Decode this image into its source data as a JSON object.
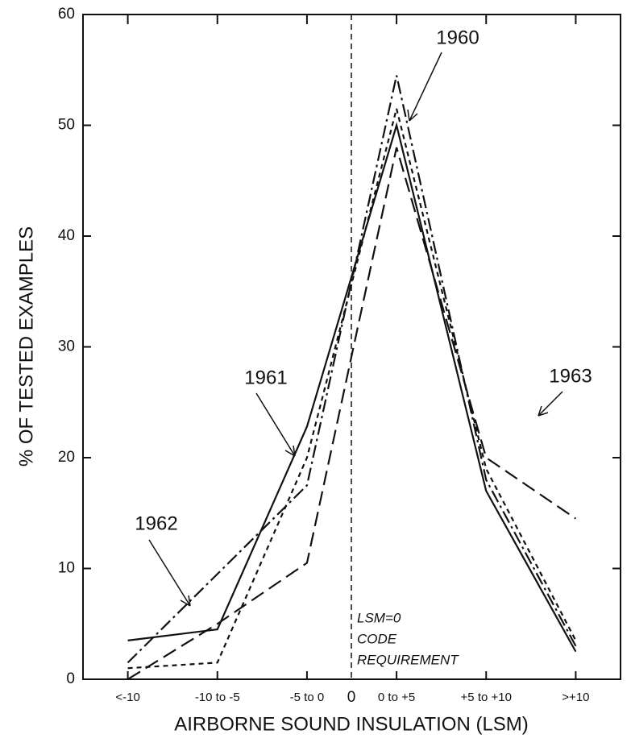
{
  "chart_data": {
    "type": "line",
    "x_label": "AIRBORNE SOUND INSULATION (LSM)",
    "y_label": "% OF TESTED EXAMPLES",
    "categories": [
      "<-10",
      "-10 to -5",
      "-5 to 0",
      "0 to +5",
      "+5 to +10",
      ">+10"
    ],
    "series": [
      {
        "name": "1960",
        "color": "#111111",
        "values": [
          1,
          1.5,
          20,
          51.5,
          19,
          3.5
        ]
      },
      {
        "name": "1961",
        "color": "#111111",
        "values": [
          3.5,
          4.5,
          22.8,
          50,
          17,
          2.5
        ]
      },
      {
        "name": "1962",
        "color": "#111111",
        "values": [
          1.5,
          9.5,
          17.5,
          54.5,
          18,
          3
        ]
      },
      {
        "name": "1963",
        "color": "#111111",
        "values": [
          0,
          5,
          10.5,
          48,
          20,
          14.5
        ]
      }
    ],
    "ylim": [
      0,
      60
    ],
    "yticks": [
      0,
      10,
      20,
      30,
      40,
      50,
      60
    ],
    "annotations": [
      "0",
      "LSM=0",
      "CODE",
      "REQUIREMENT"
    ]
  }
}
